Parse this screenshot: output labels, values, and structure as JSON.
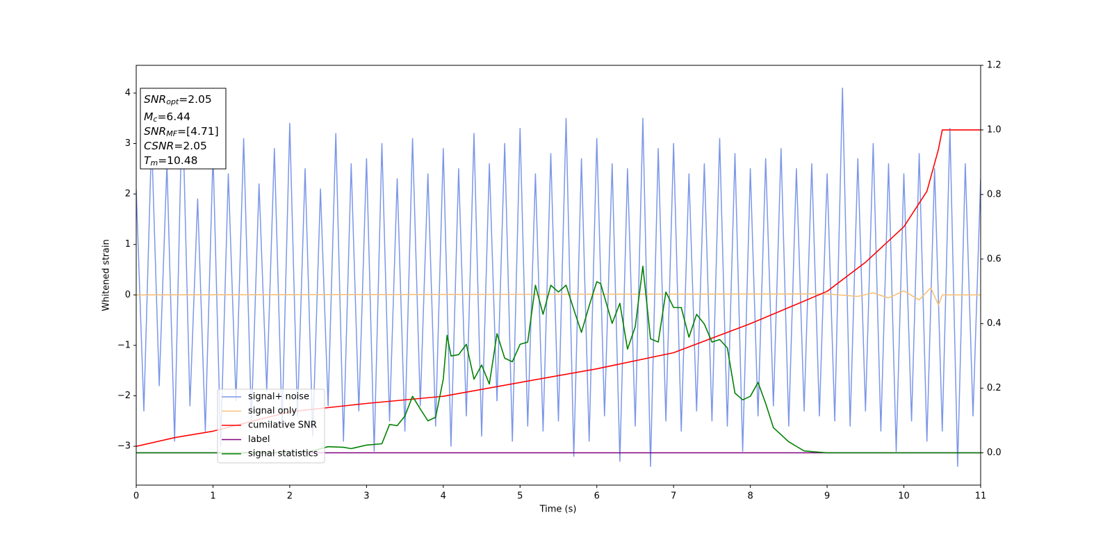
{
  "chart_data": {
    "type": "line",
    "xlabel": "Time (s)",
    "ylabel": "Whitened strain",
    "xlim": [
      0,
      11
    ],
    "xticks": [
      0,
      1,
      2,
      3,
      4,
      5,
      6,
      7,
      8,
      9,
      10,
      11
    ],
    "ylim": [
      -3.77,
      4.55
    ],
    "yticks": [
      {
        "value": -3,
        "label": "−3"
      },
      {
        "value": -2,
        "label": "−2"
      },
      {
        "value": -1,
        "label": "−1"
      },
      0,
      1,
      2,
      3,
      4
    ],
    "y2lim": [
      -0.1,
      1.2
    ],
    "y2ticks": [
      {
        "value": 0,
        "label": "0.0"
      },
      0.2,
      0.4,
      0.6,
      0.8,
      {
        "value": 1,
        "label": "1.0"
      },
      1.2
    ],
    "legend": "lower left",
    "annotation": [
      {
        "base": "SNR",
        "sub": "opt",
        "rest": "=2.05"
      },
      {
        "base": "M",
        "sub": "c",
        "rest": "=6.44"
      },
      {
        "base": "SNR",
        "sub": "MF",
        "rest": "=[4.71]"
      },
      {
        "base": "CSNR",
        "sub": null,
        "rest": "=2.05"
      },
      {
        "base": "T",
        "sub": "m",
        "rest": "=10.48"
      }
    ],
    "series": [
      {
        "name": "signal+ noise",
        "color": "#7b96e8",
        "axis": "y",
        "x": [
          0,
          0.1,
          0.2,
          0.3,
          0.4,
          0.5,
          0.6,
          0.7,
          0.8,
          0.9,
          1,
          1.1,
          1.2,
          1.3,
          1.4,
          1.5,
          1.6,
          1.7,
          1.8,
          1.9,
          2,
          2.1,
          2.2,
          2.3,
          2.4,
          2.5,
          2.6,
          2.7,
          2.8,
          2.9,
          3,
          3.1,
          3.2,
          3.3,
          3.4,
          3.5,
          3.6,
          3.7,
          3.8,
          3.9,
          4,
          4.1,
          4.2,
          4.3,
          4.4,
          4.5,
          4.6,
          4.7,
          4.8,
          4.9,
          5,
          5.1,
          5.2,
          5.3,
          5.4,
          5.5,
          5.6,
          5.7,
          5.8,
          5.9,
          6,
          6.1,
          6.2,
          6.3,
          6.4,
          6.5,
          6.6,
          6.7,
          6.8,
          6.9,
          7,
          7.1,
          7.2,
          7.3,
          7.4,
          7.5,
          7.6,
          7.7,
          7.8,
          7.9,
          8,
          8.1,
          8.2,
          8.3,
          8.4,
          8.5,
          8.6,
          8.7,
          8.8,
          8.9,
          9,
          9.1,
          9.2,
          9.3,
          9.4,
          9.5,
          9.6,
          9.7,
          9.8,
          9.9,
          10,
          10.1,
          10.2,
          10.3,
          10.4,
          10.5,
          10.6,
          10.7,
          10.8,
          10.9,
          11
        ],
        "values": [
          2.1,
          -2.3,
          3.1,
          -1.8,
          2.6,
          -2.9,
          3.9,
          -2.2,
          1.9,
          -2.7,
          2.8,
          -3.0,
          2.4,
          -2.1,
          3.1,
          -2.5,
          2.2,
          -1.9,
          2.9,
          -2.6,
          3.4,
          -2.4,
          2.5,
          -2.8,
          2.1,
          -2.2,
          3.2,
          -2.9,
          2.6,
          -2.3,
          2.7,
          -3.1,
          3.0,
          -2.5,
          2.3,
          -2.7,
          3.1,
          -2.2,
          2.4,
          -2.6,
          2.9,
          -3.0,
          2.5,
          -2.4,
          3.2,
          -2.8,
          2.6,
          -2.1,
          3.0,
          -2.9,
          3.3,
          -2.6,
          2.4,
          -2.7,
          2.8,
          -2.5,
          3.5,
          -3.2,
          2.7,
          -2.9,
          3.1,
          -2.4,
          2.6,
          -3.3,
          2.5,
          -2.6,
          3.5,
          -3.4,
          2.9,
          -2.5,
          3.0,
          -2.7,
          2.4,
          -2.3,
          2.6,
          -2.5,
          3.1,
          -2.6,
          2.8,
          -3.1,
          2.5,
          -2.4,
          2.7,
          -2.2,
          2.9,
          -2.6,
          2.5,
          -2.3,
          2.6,
          -2.4,
          2.4,
          -2.5,
          4.1,
          -2.6,
          2.7,
          -2.3,
          3.0,
          -2.7,
          2.6,
          -3.1,
          2.4,
          -2.5,
          2.8,
          -2.9,
          2.5,
          -2.7,
          3.3,
          -3.4,
          2.6,
          -2.4,
          2.3
        ]
      },
      {
        "name": "signal only",
        "color": "#f5c07a",
        "axis": "y",
        "x": [
          0,
          9,
          9.4,
          9.6,
          9.8,
          10.0,
          10.2,
          10.35,
          10.45,
          10.5,
          11
        ],
        "values": [
          0,
          0.02,
          -0.03,
          0.04,
          -0.06,
          0.08,
          -0.1,
          0.14,
          -0.2,
          0,
          0
        ]
      },
      {
        "name": "cumilative SNR",
        "color": "#ff0000",
        "axis": "y2",
        "x": [
          0,
          0.5,
          1,
          2,
          3,
          4,
          5,
          6,
          7,
          8,
          8.5,
          9,
          9.5,
          10,
          10.3,
          10.45,
          10.5,
          11
        ],
        "values": [
          0.02,
          0.047,
          0.067,
          0.127,
          0.153,
          0.175,
          0.218,
          0.26,
          0.31,
          0.4,
          0.45,
          0.5,
          0.59,
          0.7,
          0.81,
          0.94,
          1.0,
          1.0
        ]
      },
      {
        "name": "label",
        "color": "#800080",
        "axis": "y2",
        "x": [
          0,
          11
        ],
        "values": [
          0,
          0
        ]
      },
      {
        "name": "signal statistics",
        "color": "#008000",
        "axis": "y2",
        "x": [
          0,
          2,
          2.3,
          2.5,
          2.7,
          2.8,
          3,
          3.2,
          3.3,
          3.4,
          3.5,
          3.6,
          3.7,
          3.8,
          3.9,
          4.0,
          4.05,
          4.1,
          4.2,
          4.3,
          4.4,
          4.5,
          4.6,
          4.7,
          4.8,
          4.9,
          5.0,
          5.1,
          5.2,
          5.3,
          5.4,
          5.5,
          5.6,
          5.7,
          5.8,
          5.9,
          6.0,
          6.05,
          6.2,
          6.3,
          6.4,
          6.5,
          6.6,
          6.7,
          6.8,
          6.9,
          7.0,
          7.1,
          7.2,
          7.3,
          7.4,
          7.5,
          7.6,
          7.7,
          7.8,
          7.9,
          8.0,
          8.1,
          8.2,
          8.3,
          8.5,
          8.7,
          9,
          11
        ],
        "values": [
          0,
          0,
          0.006,
          0.019,
          0.017,
          0.013,
          0.024,
          0.028,
          0.088,
          0.084,
          0.114,
          0.175,
          0.136,
          0.099,
          0.11,
          0.228,
          0.364,
          0.3,
          0.304,
          0.336,
          0.228,
          0.272,
          0.213,
          0.369,
          0.293,
          0.282,
          0.336,
          0.343,
          0.519,
          0.429,
          0.519,
          0.498,
          0.519,
          0.444,
          0.373,
          0.455,
          0.53,
          0.524,
          0.401,
          0.463,
          0.321,
          0.39,
          0.578,
          0.353,
          0.343,
          0.498,
          0.45,
          0.45,
          0.358,
          0.429,
          0.399,
          0.343,
          0.351,
          0.325,
          0.185,
          0.164,
          0.175,
          0.218,
          0.153,
          0.078,
          0.034,
          0.006,
          0,
          0
        ]
      }
    ]
  }
}
